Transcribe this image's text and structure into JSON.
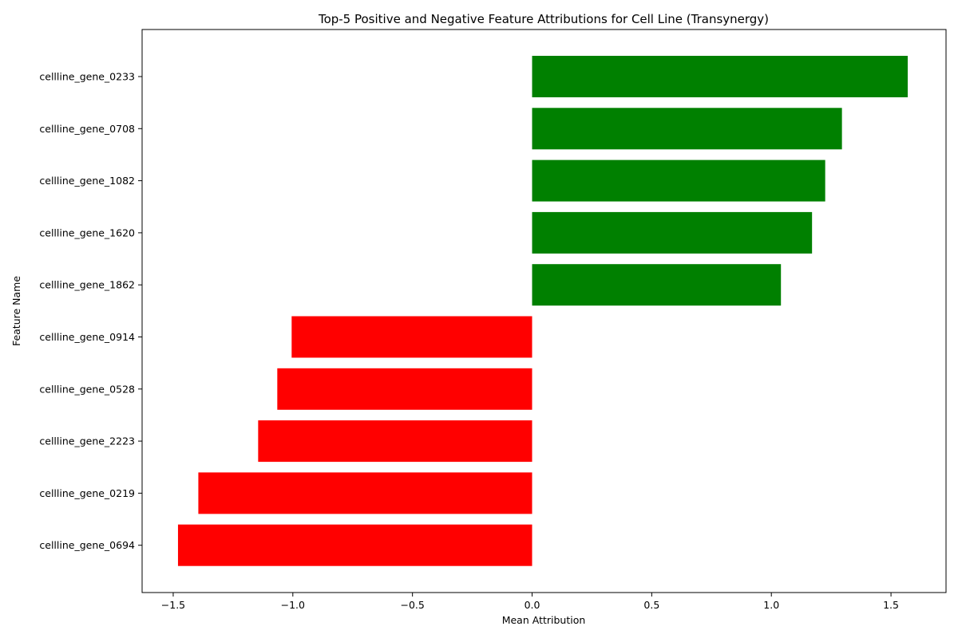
{
  "chart_data": {
    "type": "bar",
    "orientation": "horizontal",
    "title": "Top-5 Positive and Negative Feature Attributions for Cell Line (Transynergy)",
    "xlabel": "Mean Attribution",
    "ylabel": "Feature Name",
    "xlim": [
      -1.63,
      1.73
    ],
    "x_ticks": [
      -1.5,
      -1.0,
      -0.5,
      0.0,
      0.5,
      1.0,
      1.5
    ],
    "x_tick_labels": [
      "−1.5",
      "−1.0",
      "−0.5",
      "0.0",
      "0.5",
      "1.0",
      "1.5"
    ],
    "grid": false,
    "categories": [
      "cellline_gene_0233",
      "cellline_gene_0708",
      "cellline_gene_1082",
      "cellline_gene_1620",
      "cellline_gene_1862",
      "cellline_gene_0914",
      "cellline_gene_0528",
      "cellline_gene_2223",
      "cellline_gene_0219",
      "cellline_gene_0694"
    ],
    "values": [
      1.57,
      1.295,
      1.225,
      1.17,
      1.04,
      -1.005,
      -1.065,
      -1.145,
      -1.395,
      -1.48
    ],
    "colors": {
      "positive": "#008000",
      "negative": "#ff0000"
    }
  }
}
